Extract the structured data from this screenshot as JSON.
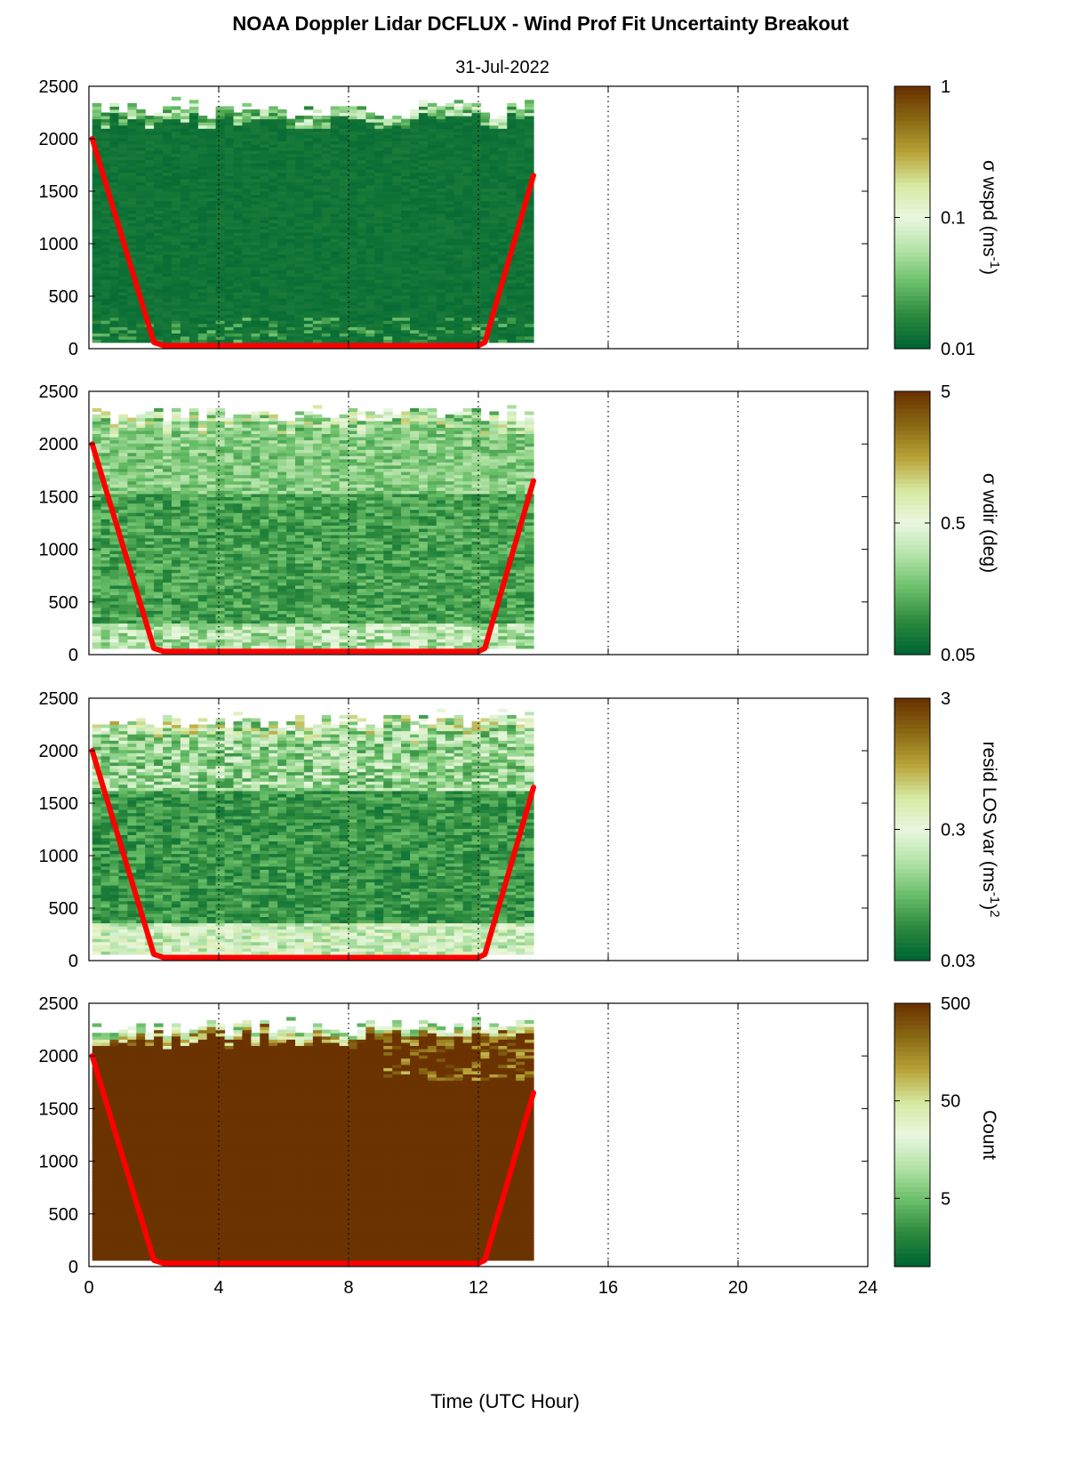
{
  "figure": {
    "title": "NOAA Doppler Lidar DCFLUX - Wind Prof Fit Uncertainty Breakout",
    "subtitle": "31-Jul-2022",
    "xlabel": "Time (UTC Hour)"
  },
  "chart_data": [
    {
      "type": "heatmap",
      "name": "σ wspd",
      "xlim": [
        0,
        24
      ],
      "ylim": [
        0,
        2500
      ],
      "x_ticks": [
        "0",
        "4",
        "8",
        "12",
        "16",
        "20",
        "24"
      ],
      "y_ticks": [
        "0",
        "500",
        "1000",
        "1500",
        "2000",
        "2500"
      ],
      "data_extent_hours": [
        0.1,
        13.7
      ],
      "colorbar": {
        "label": "σ wspd (ms",
        "label_sup": "-1",
        "label_end": ")",
        "scale": "log",
        "ticks": [
          "1",
          "0.1",
          "0.01"
        ],
        "range": [
          0.01,
          1
        ]
      },
      "boundary_line": {
        "color": "#ff0000",
        "x": [
          0.1,
          2.0,
          2.3,
          12.0,
          12.2,
          13.7
        ],
        "y": [
          2000,
          60,
          30,
          30,
          60,
          1650
        ]
      },
      "grid": "dotted vertical"
    },
    {
      "type": "heatmap",
      "name": "σ wdir",
      "xlim": [
        0,
        24
      ],
      "ylim": [
        0,
        2500
      ],
      "x_ticks": [
        "0",
        "4",
        "8",
        "12",
        "16",
        "20",
        "24"
      ],
      "y_ticks": [
        "0",
        "500",
        "1000",
        "1500",
        "2000",
        "2500"
      ],
      "data_extent_hours": [
        0.1,
        13.7
      ],
      "colorbar": {
        "label": "σ wdir (deg)",
        "label_sup": "",
        "label_end": "",
        "scale": "log",
        "ticks": [
          "5",
          "0.5",
          "0.05"
        ],
        "range": [
          0.05,
          5
        ]
      },
      "boundary_line": {
        "color": "#ff0000",
        "x": [
          0.1,
          2.0,
          2.3,
          12.0,
          12.2,
          13.7
        ],
        "y": [
          2000,
          60,
          30,
          30,
          60,
          1650
        ]
      },
      "grid": "dotted vertical"
    },
    {
      "type": "heatmap",
      "name": "resid LOS var",
      "xlim": [
        0,
        24
      ],
      "ylim": [
        0,
        2500
      ],
      "x_ticks": [
        "0",
        "4",
        "8",
        "12",
        "16",
        "20",
        "24"
      ],
      "y_ticks": [
        "0",
        "500",
        "1000",
        "1500",
        "2000",
        "2500"
      ],
      "data_extent_hours": [
        0.1,
        13.7
      ],
      "colorbar": {
        "label": "resid LOS var (ms",
        "label_sup": "-1",
        "label_end": ")",
        "label_sup2": "2",
        "scale": "log",
        "ticks": [
          "3",
          "0.3",
          "0.03"
        ],
        "range": [
          0.03,
          3
        ]
      },
      "boundary_line": {
        "color": "#ff0000",
        "x": [
          0.1,
          2.0,
          2.3,
          12.0,
          12.2,
          13.7
        ],
        "y": [
          2000,
          60,
          30,
          30,
          60,
          1650
        ]
      },
      "grid": "dotted vertical"
    },
    {
      "type": "heatmap",
      "name": "Count",
      "xlim": [
        0,
        24
      ],
      "ylim": [
        0,
        2500
      ],
      "x_ticks": [
        "0",
        "4",
        "8",
        "12",
        "16",
        "20",
        "24"
      ],
      "y_ticks": [
        "0",
        "500",
        "1000",
        "1500",
        "2000",
        "2500"
      ],
      "data_extent_hours": [
        0.1,
        13.7
      ],
      "colorbar": {
        "label": "Count",
        "label_sup": "",
        "label_end": "",
        "scale": "log",
        "ticks": [
          "500",
          "50",
          "5"
        ],
        "range": [
          1,
          500
        ]
      },
      "boundary_line": {
        "color": "#ff0000",
        "x": [
          0.1,
          2.0,
          2.3,
          12.0,
          12.2,
          13.7
        ],
        "y": [
          2000,
          60,
          30,
          30,
          60,
          1650
        ]
      },
      "grid": "dotted vertical"
    }
  ],
  "colors": {
    "colormap": [
      "#006633",
      "#2e8b3e",
      "#6cc06a",
      "#b4e3a8",
      "#eaf7e0",
      "#d6e9a0",
      "#b8a338",
      "#8a6a14",
      "#6b3300"
    ],
    "boundary": "#ff0000"
  }
}
